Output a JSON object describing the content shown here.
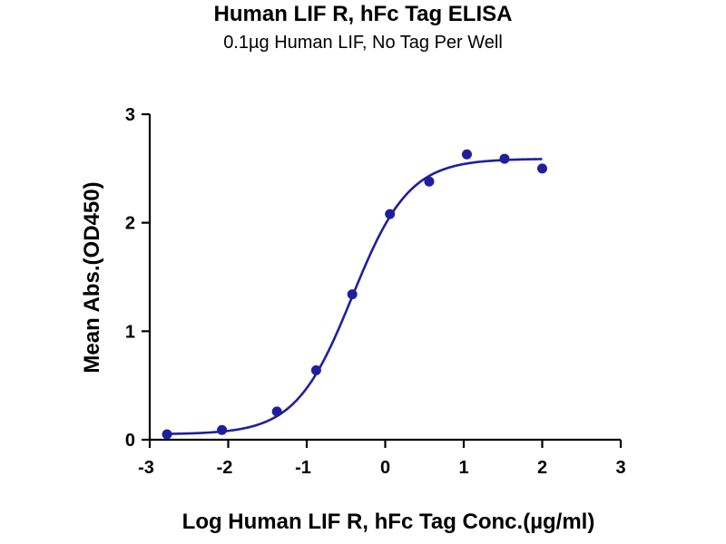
{
  "chart_data": {
    "type": "scatter",
    "title": "Human LIF R, hFc Tag ELISA",
    "subtitle": "0.1µg Human LIF, No Tag Per Well",
    "xlabel": "Log Human LIF R, hFc Tag Conc.(µg/ml)",
    "ylabel": "Mean Abs.(OD450)",
    "xlim": [
      -3,
      3
    ],
    "ylim": [
      0,
      3
    ],
    "x_ticks": [
      "-3",
      "-2",
      "-1",
      "0",
      "1",
      "2",
      "3"
    ],
    "y_ticks": [
      "0",
      "1",
      "2",
      "3"
    ],
    "grid": false,
    "legend": "none",
    "series": [
      {
        "color": "#1f1f9e",
        "points": [
          {
            "x": -2.78,
            "y": 0.05
          },
          {
            "x": -2.08,
            "y": 0.09
          },
          {
            "x": -1.38,
            "y": 0.26
          },
          {
            "x": -0.88,
            "y": 0.64
          },
          {
            "x": -0.42,
            "y": 1.34
          },
          {
            "x": 0.06,
            "y": 2.08
          },
          {
            "x": 0.56,
            "y": 2.38
          },
          {
            "x": 1.04,
            "y": 2.63
          },
          {
            "x": 1.52,
            "y": 2.59
          },
          {
            "x": 2.0,
            "y": 2.5
          }
        ],
        "fit_curve": {
          "model": "4PL",
          "bottom": 0.05,
          "top": 2.59,
          "logEC50": -0.42,
          "hill": 1.2,
          "x_range": [
            -2.78,
            2.0
          ]
        }
      }
    ]
  }
}
